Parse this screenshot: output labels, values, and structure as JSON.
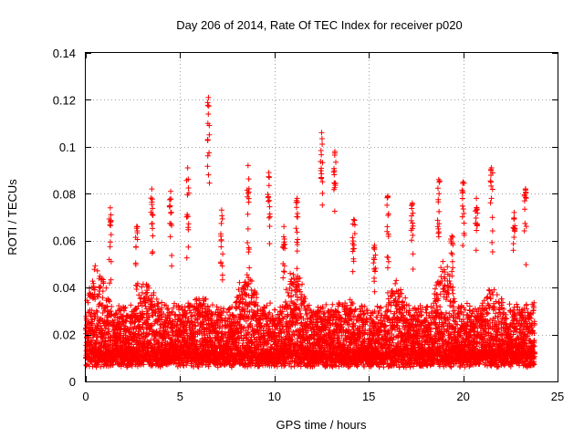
{
  "chart_data": {
    "type": "scatter",
    "title": "Day 206 of 2014, Rate Of TEC Index for receiver p020",
    "xlabel": "GPS time / hours",
    "ylabel": "ROTI / TECUs",
    "xlim": [
      0,
      25
    ],
    "ylim": [
      0,
      0.14
    ],
    "xticks": [
      0,
      5,
      10,
      15,
      20,
      25
    ],
    "yticks": [
      0,
      0.02,
      0.04,
      0.06,
      0.08,
      0.1,
      0.12,
      0.14
    ],
    "xtick_labels": [
      "0",
      "5",
      "10",
      "15",
      "20",
      "25"
    ],
    "ytick_labels": [
      "0",
      "0.02",
      "0.04",
      "0.06",
      "0.08",
      "0.1",
      "0.12",
      "0.14"
    ],
    "grid": true,
    "marker": "+",
    "color": "#ff0000",
    "series": [
      {
        "name": "p020",
        "x_range_hours": [
          0,
          23.8
        ],
        "sample_interval_hours": 0.01,
        "baseline": 0.012,
        "peaks": [
          {
            "x": 6.5,
            "y": 0.121
          },
          {
            "x": 12.5,
            "y": 0.106
          },
          {
            "x": 13.2,
            "y": 0.098
          },
          {
            "x": 8.6,
            "y": 0.092
          },
          {
            "x": 21.5,
            "y": 0.091
          },
          {
            "x": 5.4,
            "y": 0.091
          },
          {
            "x": 9.7,
            "y": 0.089
          },
          {
            "x": 20.0,
            "y": 0.085
          },
          {
            "x": 18.7,
            "y": 0.086
          },
          {
            "x": 23.3,
            "y": 0.082
          },
          {
            "x": 3.5,
            "y": 0.082
          },
          {
            "x": 4.5,
            "y": 0.081
          },
          {
            "x": 16.0,
            "y": 0.079
          },
          {
            "x": 11.2,
            "y": 0.078
          },
          {
            "x": 20.7,
            "y": 0.078
          },
          {
            "x": 17.3,
            "y": 0.076
          },
          {
            "x": 7.2,
            "y": 0.073
          },
          {
            "x": 1.3,
            "y": 0.074
          },
          {
            "x": 2.7,
            "y": 0.066
          },
          {
            "x": 10.5,
            "y": 0.066
          },
          {
            "x": 14.2,
            "y": 0.069
          },
          {
            "x": 19.4,
            "y": 0.062
          },
          {
            "x": 22.7,
            "y": 0.072
          },
          {
            "x": 15.3,
            "y": 0.058
          }
        ]
      }
    ]
  }
}
